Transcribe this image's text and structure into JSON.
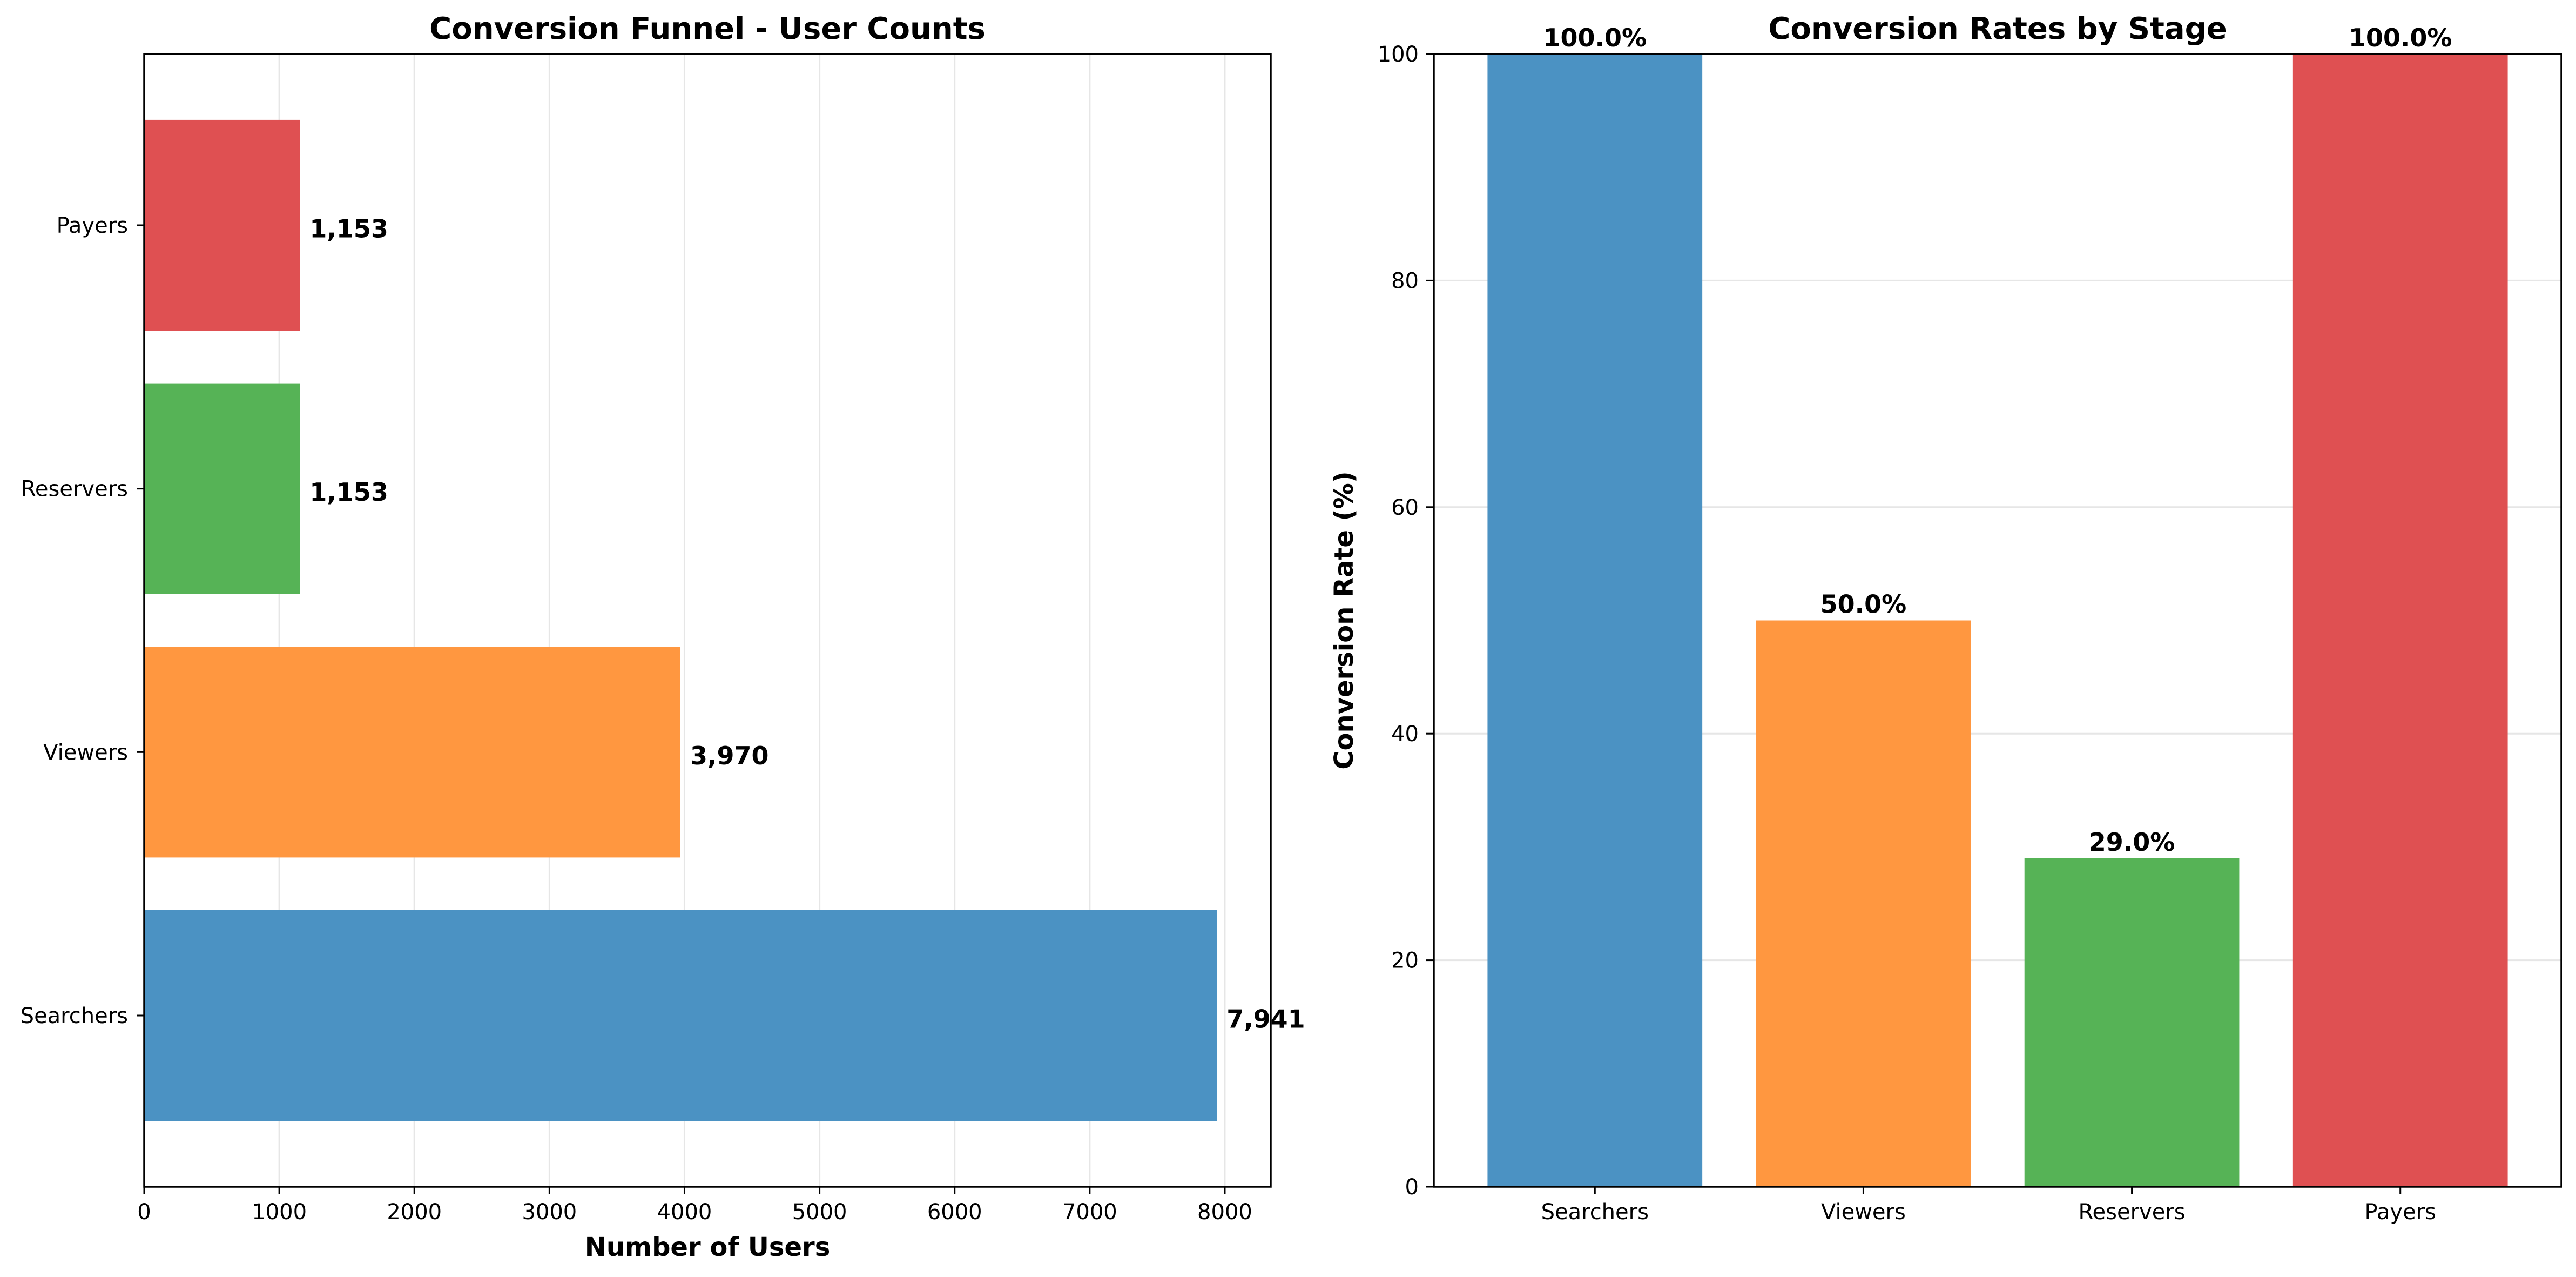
{
  "chart_data": [
    {
      "type": "bar",
      "orientation": "horizontal",
      "title": "Conversion Funnel - User Counts",
      "xlabel": "Number of Users",
      "ylabel": "",
      "categories": [
        "Searchers",
        "Viewers",
        "Reservers",
        "Payers"
      ],
      "values": [
        7941,
        3970,
        1153,
        1153
      ],
      "value_labels": [
        "7,941",
        "3,970",
        "1,153",
        "1,153"
      ],
      "colors": [
        "#4b92c3",
        "#ff9740",
        "#56b356",
        "#df5052"
      ],
      "xlim": [
        0,
        8340
      ],
      "xticks": [
        0,
        1000,
        2000,
        3000,
        4000,
        5000,
        6000,
        7000,
        8000
      ],
      "xtick_labels": [
        "0",
        "1000",
        "2000",
        "3000",
        "4000",
        "5000",
        "6000",
        "7000",
        "8000"
      ],
      "grid": "x"
    },
    {
      "type": "bar",
      "orientation": "vertical",
      "title": "Conversion Rates by Stage",
      "xlabel": "",
      "ylabel": "Conversion Rate (%)",
      "categories": [
        "Searchers",
        "Viewers",
        "Reservers",
        "Payers"
      ],
      "values": [
        100.0,
        50.0,
        29.0,
        100.0
      ],
      "value_labels": [
        "100.0%",
        "50.0%",
        "29.0%",
        "100.0%"
      ],
      "colors": [
        "#4b92c3",
        "#ff9740",
        "#56b356",
        "#df5052"
      ],
      "ylim": [
        0,
        100
      ],
      "yticks": [
        0,
        20,
        40,
        60,
        80,
        100
      ],
      "ytick_labels": [
        "0",
        "20",
        "40",
        "60",
        "80",
        "100"
      ],
      "grid": "y"
    }
  ]
}
